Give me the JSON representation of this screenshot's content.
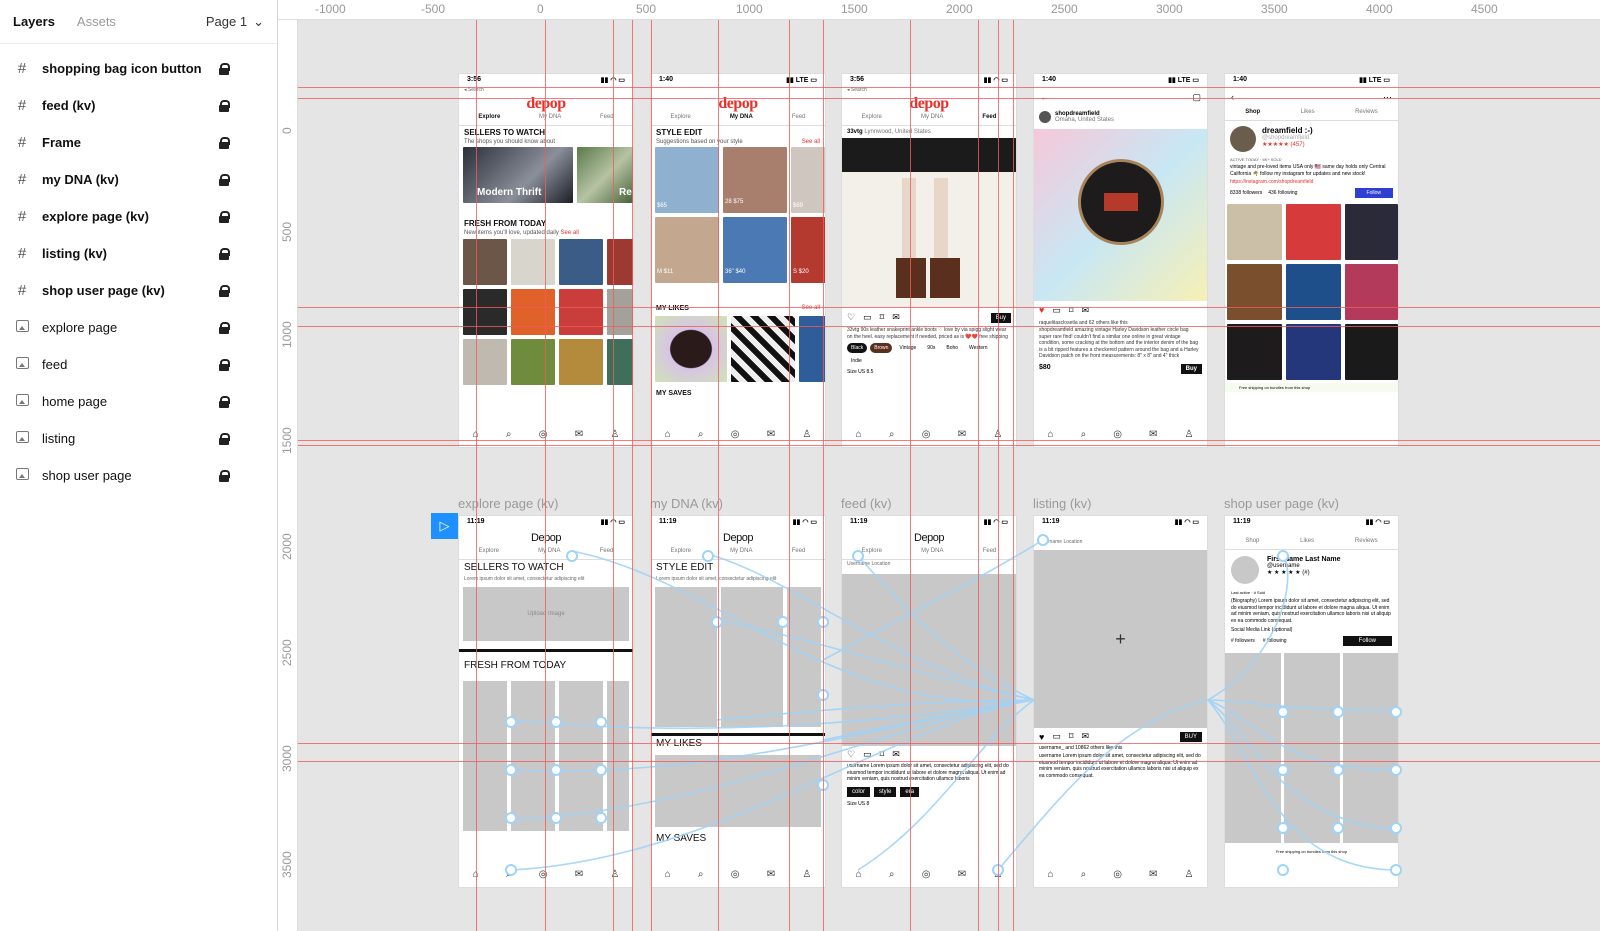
{
  "panel": {
    "tabs": [
      {
        "label": "Layers",
        "active": true
      },
      {
        "label": "Assets",
        "active": false
      }
    ],
    "page_label": "Page 1",
    "layers": [
      {
        "label": "shopping bag icon button",
        "kind": "frame"
      },
      {
        "label": "feed (kv)",
        "kind": "frame"
      },
      {
        "label": "Frame",
        "kind": "frame"
      },
      {
        "label": "my DNA (kv)",
        "kind": "frame"
      },
      {
        "label": "explore page (kv)",
        "kind": "frame"
      },
      {
        "label": "listing (kv)",
        "kind": "frame"
      },
      {
        "label": "shop user page (kv)",
        "kind": "frame"
      },
      {
        "label": "explore page",
        "kind": "image"
      },
      {
        "label": "feed",
        "kind": "image"
      },
      {
        "label": "home page",
        "kind": "image"
      },
      {
        "label": "listing",
        "kind": "image"
      },
      {
        "label": "shop user page",
        "kind": "image"
      }
    ]
  },
  "ruler": {
    "top": [
      "-1000",
      "-500",
      "0",
      "500",
      "1000",
      "1500",
      "2000",
      "2500",
      "3000",
      "3500",
      "4000",
      "4500"
    ],
    "left": [
      "0",
      "500",
      "1000",
      "1500",
      "2000",
      "2500",
      "3000",
      "3500"
    ]
  },
  "mockups": {
    "explore": {
      "time": "3:56",
      "search": "◂ Search",
      "logo": "depop",
      "tabs": [
        "Explore",
        "My DNA",
        "Feed"
      ],
      "section1": "SELLERS TO WATCH",
      "sub1": "The shops you should know about",
      "seller": "Modern Thrift",
      "seller2": "Re",
      "section2": "FRESH FROM TODAY",
      "sub2": "New items you'll love, updated daily",
      "see_all": "See all"
    },
    "dna": {
      "time": "1:40",
      "logo": "depop",
      "tabs": [
        "Explore",
        "My DNA",
        "Feed"
      ],
      "section1": "STYLE EDIT",
      "sub1": "Suggestions based on your style",
      "see_all": "See all",
      "prices": [
        "$65",
        "28 $75",
        "$69",
        "M $11",
        "36\" $40",
        "S $20"
      ],
      "section2": "MY LIKES",
      "section3": "MY SAVES"
    },
    "feed": {
      "time": "3:56",
      "search": "◂ Search",
      "logo": "depop",
      "tabs": [
        "Explore",
        "My DNA",
        "Feed"
      ],
      "user": "33vtg",
      "loc": "Lynnwood, United States",
      "buy": "Buy",
      "caption": "33vtg 90s leather snakeprint ankle boots ♡ love by via spigg slight wear on the heel. easy replacement if needed, priced as is ❤️❤️ free shipping",
      "tags": [
        "Black",
        "Brown",
        "Vintage",
        "90s",
        "Boho",
        "Western",
        "Indie"
      ],
      "size": "Size US 8.5"
    },
    "listing": {
      "time": "1:40",
      "user": "shopdreamfield",
      "loc": "Omaha, United States",
      "likes": "raquelitasclosetla and 62 others like this",
      "desc": "shopdreamfield amazing vintage Harley Davidson leather circle bag super rare find! couldn't find a similar one online in great vintage condition, some cracking at the bottom and the interior denim of the bag is a bit ripped features a checkered pattern around the bag and a Harley Davidson patch on the front measurements: 8\" x 8\" and 4\" thick",
      "price": "$80",
      "buy": "Buy"
    },
    "shop": {
      "time": "1:40",
      "tabs": [
        "Shop",
        "Likes",
        "Reviews"
      ],
      "name": "dreamfield :-)",
      "handle": "@shopdreamfield",
      "reviews": "★★★★★ (457)",
      "active": "ACTIVE TODAY",
      "sold": "5K+ SOLD",
      "bio": "vintage and pre-loved items USA only 🇺🇸 same day holds only Central California 🌴 follow my instagram for updates and new stock!",
      "link": "https://instagram.com/shopdreamfield",
      "followers": "8338 followers",
      "following": "436 following",
      "follow": "Follow",
      "shipping": "Free shipping on bundles from this shop"
    }
  },
  "wireframes": {
    "labels": [
      "explore page (kv)",
      "my DNA (kv)",
      "feed (kv)",
      "listing (kv)",
      "shop user page (kv)"
    ],
    "time": "11:19",
    "logo": "Depop",
    "tabs": [
      "Explore",
      "My DNA",
      "Feed"
    ],
    "explore": {
      "s1": "SELLERS TO WATCH",
      "sub": "Lorem ipsum dolor sit amet, consectetur adipiscing elit",
      "upload": "Upload Image",
      "s2": "FRESH FROM TODAY"
    },
    "dna": {
      "s1": "STYLE EDIT",
      "sub": "Lorem ipsum dolor sit amet, consectetur adipiscing elit",
      "s2": "MY LIKES",
      "s3": "MY SAVES"
    },
    "feed": {
      "user": "Username",
      "loc": "Location",
      "text": "username Lorem ipsum dolor sit amet, consectetur adipiscing elit, sed do eiusmod tempor incididunt ut labore et dolore magna aliqua. Ut enim ad minim veniam, quis nostrud exercitation ullamco laboris",
      "tags": [
        "color",
        "style",
        "era"
      ],
      "size": "Size US 8"
    },
    "listing": {
      "user": "Username",
      "loc": "Location",
      "buy": "BUY",
      "likes": "username_ and 10862 others like this",
      "text": "username Lorem ipsum dolor sit amet, consectetur adipiscing elit, sed do eiusmod tempor incididunt ut labore et dolore magna aliqua. Ut enim ad minim veniam, quis nostrud exercitation ullamco laboris nisi ut aliquip ex ea commodo consequat."
    },
    "shop": {
      "tabs": [
        "Shop",
        "Likes",
        "Reviews"
      ],
      "name": "First Name Last Name",
      "handle": "@username",
      "stars": "★ ★ ★ ★ ★ (#)",
      "active": "Last active",
      "sold": "# Sold",
      "bio": "(Biography) Lorem ipsum dolor sit amet, consectetur adipiscing elit, sed do eiusmod tempor incididunt ut labore et dolore magna aliqua. Ut enim ad minim veniam, quis nostrud exercitation ullamco laboris nisi ut aliquip ex ea commodo consequat.",
      "link": "Social Media Link (optional)",
      "followers": "# followers",
      "following": "# following",
      "follow": "Follow",
      "shipping": "Free shipping on bundles from this shop"
    }
  },
  "colors": {
    "brand": "#e9302b",
    "guide": "#f25a5a",
    "proto": "#9fd3f7",
    "selection": "#1e90ff"
  }
}
